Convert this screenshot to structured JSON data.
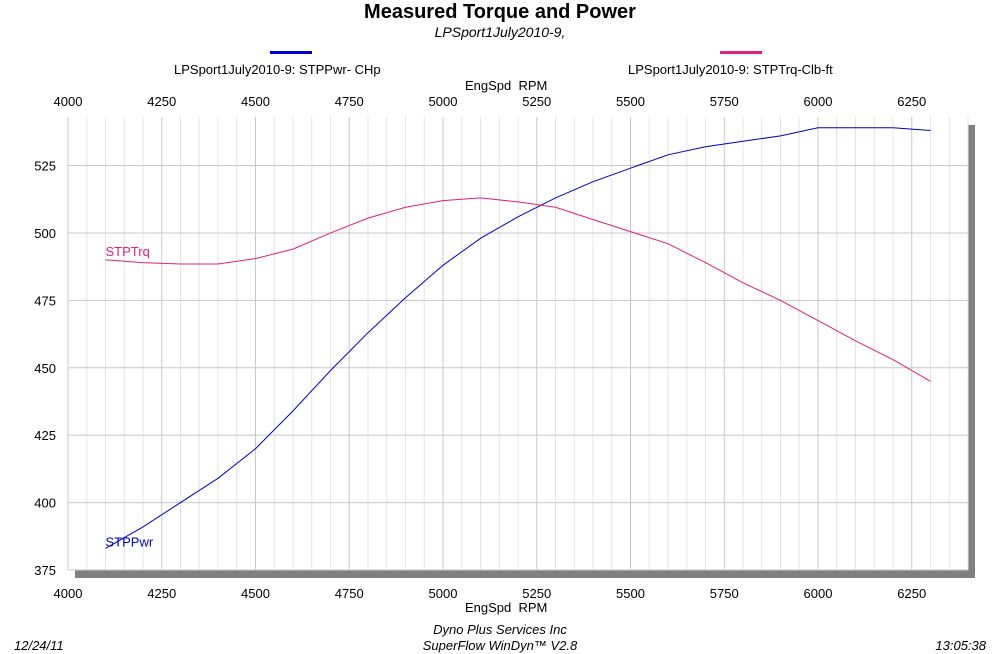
{
  "title": "Measured Torque and Power",
  "subtitle": "LPSport1July2010-9,",
  "legend": [
    {
      "label": "LPSport1July2010-9: STPPwr- CHp",
      "color": "#0000c8"
    },
    {
      "label": "LPSport1July2010-9: STPTrq-Clb-ft",
      "color": "#e0207a"
    }
  ],
  "footer": {
    "date": "12/24/11",
    "company": "Dyno Plus Services Inc",
    "software": "SuperFlow WinDyn™ V2.8",
    "time": "13:05:38"
  },
  "chart_data": {
    "type": "line",
    "title": "Measured Torque and Power",
    "subtitle": "LPSport1July2010-9,",
    "xlabel": "EngSpd  RPM",
    "ylabel": "",
    "xlim": [
      4000,
      6400
    ],
    "ylim": [
      375,
      543
    ],
    "x_ticks": [
      4000,
      4250,
      4500,
      4750,
      5000,
      5250,
      5500,
      5750,
      6000,
      6250
    ],
    "y_ticks": [
      375,
      400,
      425,
      450,
      475,
      500,
      525
    ],
    "grid": true,
    "legend_position": "top",
    "x": [
      4100,
      4200,
      4300,
      4400,
      4500,
      4600,
      4700,
      4800,
      4900,
      5000,
      5100,
      5200,
      5300,
      5400,
      5500,
      5600,
      5700,
      5800,
      5900,
      6000,
      6100,
      6200,
      6300
    ],
    "series": [
      {
        "name": "LPSport1July2010-9: STPPwr- CHp",
        "label": "STPPwr",
        "color": "#0000c8",
        "values": [
          383,
          391,
          400,
          409,
          420,
          434,
          449,
          463,
          476,
          488,
          498,
          506,
          513,
          519,
          524,
          529,
          532,
          534,
          536,
          539,
          539,
          539,
          538
        ]
      },
      {
        "name": "LPSport1July2010-9: STPTrq-Clb-ft",
        "label": "STPTrq",
        "color": "#e0207a",
        "values": [
          490,
          489,
          488.5,
          488.5,
          490.5,
          494,
          500,
          505.5,
          509.5,
          512,
          513,
          511.5,
          509.5,
          505,
          500.5,
          496,
          489,
          481.5,
          475,
          467.5,
          460,
          453,
          445
        ]
      }
    ]
  }
}
